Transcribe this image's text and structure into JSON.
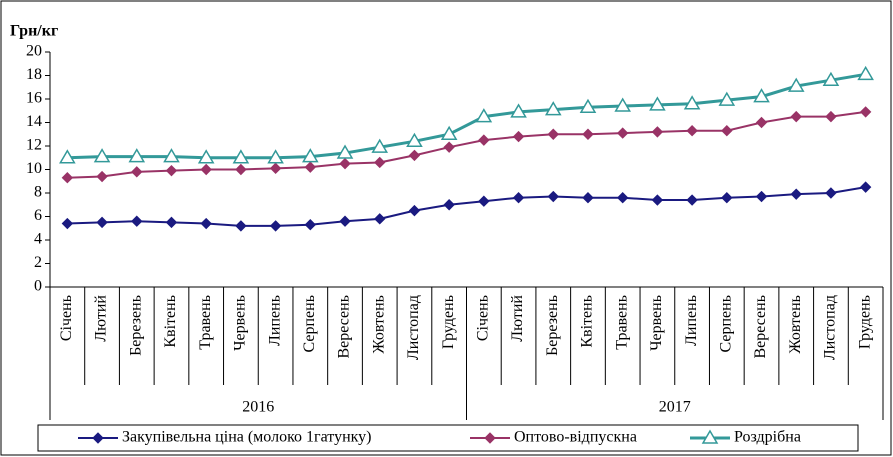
{
  "chart_data": {
    "type": "line",
    "y_label": "Грн/кг",
    "category_groups": [
      {
        "name": "2016",
        "categories": [
          "Січень",
          "Лютий",
          "Березень",
          "Квітень",
          "Травень",
          "Червень",
          "Липень",
          "Серпень",
          "Вересень",
          "Жовтень",
          "Листопад",
          "Грудень"
        ]
      },
      {
        "name": "2017",
        "categories": [
          "Січень",
          "Лютий",
          "Березень",
          "Квітень",
          "Травень",
          "Червень",
          "Липень",
          "Серпень",
          "Вересень",
          "Жовтень",
          "Листопад",
          "Грудень"
        ]
      }
    ],
    "series": [
      {
        "name": "Закупівельна ціна (молоко 1гатунку)",
        "color": "#1a1a80",
        "marker": "diamond",
        "values": [
          5.4,
          5.5,
          5.6,
          5.5,
          5.4,
          5.2,
          5.2,
          5.3,
          5.6,
          5.8,
          6.5,
          7.0,
          7.3,
          7.6,
          7.7,
          7.6,
          7.6,
          7.4,
          7.4,
          7.6,
          7.7,
          7.9,
          8.0,
          8.5
        ]
      },
      {
        "name": "Оптово-відпускна",
        "color": "#993366",
        "marker": "diamond",
        "values": [
          9.3,
          9.4,
          9.8,
          9.9,
          10.0,
          10.0,
          10.1,
          10.2,
          10.5,
          10.6,
          11.2,
          11.9,
          12.5,
          12.8,
          13.0,
          13.0,
          13.1,
          13.2,
          13.3,
          13.3,
          14.0,
          14.5,
          14.5,
          14.9
        ]
      },
      {
        "name": "Роздрібна",
        "color": "#339999",
        "marker": "triangle",
        "values": [
          11.0,
          11.1,
          11.1,
          11.1,
          11.0,
          11.0,
          11.0,
          11.1,
          11.4,
          11.9,
          12.4,
          13.0,
          14.5,
          14.9,
          15.1,
          15.3,
          15.4,
          15.5,
          15.6,
          15.9,
          16.2,
          17.1,
          17.6,
          18.1
        ]
      }
    ],
    "ylim": [
      0,
      20
    ],
    "yticks": [
      0,
      2,
      4,
      6,
      8,
      10,
      12,
      14,
      16,
      18,
      20
    ]
  }
}
